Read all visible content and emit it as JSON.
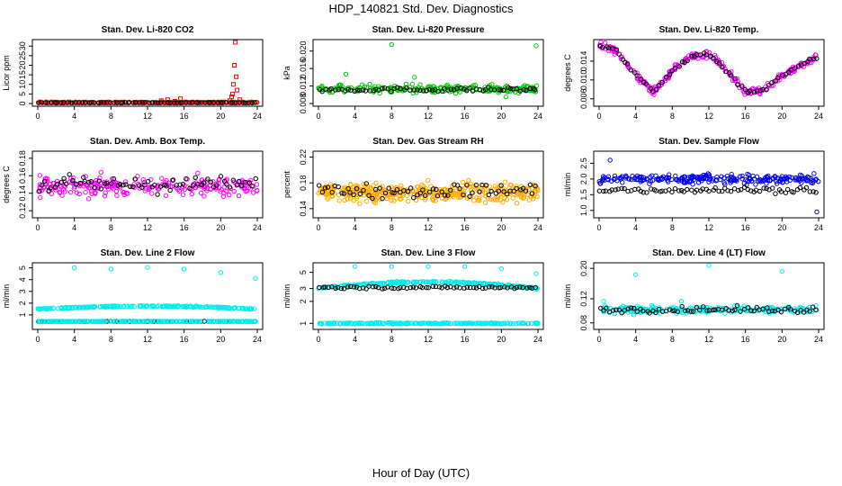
{
  "page": {
    "title": "HDP_140821  Std. Dev. Diagnostics",
    "footer": "Hour of Day (UTC)"
  },
  "chart_data": [
    {
      "type": "scatter",
      "title": "Stan. Dev. Li-820 CO2",
      "ylabel": "Licor ppm",
      "xlim": [
        0,
        24
      ],
      "ylim": [
        0,
        32
      ],
      "xticks": [
        "0",
        "4",
        "8",
        "12",
        "16",
        "20",
        "24"
      ],
      "yticks": [
        "0",
        "5",
        "10",
        "15",
        "20",
        "25",
        "30"
      ],
      "series": [
        {
          "color": "#ff0000",
          "pattern": "spiky",
          "base": 0.6,
          "spread": 0.4,
          "spikes": [
            [
              13.5,
              1.5
            ],
            [
              14.2,
              2
            ],
            [
              15.0,
              1.2
            ],
            [
              15.6,
              2.5
            ],
            [
              21.0,
              1.5
            ],
            [
              21.2,
              3.5
            ],
            [
              21.3,
              5
            ],
            [
              21.4,
              10
            ],
            [
              21.5,
              20
            ],
            [
              21.6,
              32
            ],
            [
              21.7,
              14
            ],
            [
              21.8,
              7
            ],
            [
              22.1,
              2
            ]
          ]
        },
        {
          "color": "#000000",
          "base": 0.4,
          "spread": 0.2
        }
      ]
    },
    {
      "type": "scatter",
      "title": "Stan. Dev. Li-820 Pressure",
      "ylabel": "kPa",
      "xlim": [
        0,
        24
      ],
      "ylim": [
        0.008,
        0.022
      ],
      "xticks": [
        "0",
        "4",
        "8",
        "12",
        "16",
        "20",
        "24"
      ],
      "yticks": [
        "0.008",
        "0.012",
        "0.016",
        "0.020"
      ],
      "series": [
        {
          "color": "#00cc00",
          "base": 0.0113,
          "spread": 0.0015,
          "outliers": [
            [
              8,
              0.0215
            ],
            [
              23.8,
              0.0212
            ],
            [
              3.0,
              0.0147
            ],
            [
              10.5,
              0.014
            ],
            [
              20.5,
              0.0095
            ]
          ]
        },
        {
          "color": "#000000",
          "base": 0.0112,
          "spread": 0.0008
        }
      ]
    },
    {
      "type": "scatter",
      "title": "Stan. Dev. Li-820 Temp.",
      "ylabel": "degrees C",
      "xlim": [
        0,
        24
      ],
      "ylim": [
        0.005,
        0.018
      ],
      "xticks": [
        "0",
        "4",
        "8",
        "12",
        "16",
        "20",
        "24"
      ],
      "yticks": [
        "0.006",
        "0.010",
        "0.014"
      ],
      "series": [
        {
          "color": "#ff00ff",
          "pattern": "wave",
          "wave": [
            [
              0,
              0.0175
            ],
            [
              2,
              0.016
            ],
            [
              4,
              0.011
            ],
            [
              6,
              0.0075
            ],
            [
              8,
              0.012
            ],
            [
              10,
              0.015
            ],
            [
              12,
              0.0155
            ],
            [
              14,
              0.012
            ],
            [
              16,
              0.0075
            ],
            [
              18,
              0.008
            ],
            [
              20,
              0.011
            ],
            [
              22,
              0.013
            ],
            [
              24,
              0.015
            ]
          ],
          "spread": 0.0012
        },
        {
          "color": "#000000",
          "pattern": "wave",
          "wave": [
            [
              0,
              0.0175
            ],
            [
              2,
              0.016
            ],
            [
              4,
              0.011
            ],
            [
              6,
              0.0075
            ],
            [
              8,
              0.012
            ],
            [
              10,
              0.015
            ],
            [
              12,
              0.0155
            ],
            [
              14,
              0.012
            ],
            [
              16,
              0.0075
            ],
            [
              18,
              0.008
            ],
            [
              20,
              0.011
            ],
            [
              22,
              0.013
            ],
            [
              24,
              0.015
            ]
          ],
          "spread": 0.0008
        }
      ]
    },
    {
      "type": "scatter",
      "title": "Stan. Dev. Amb. Box Temp.",
      "ylabel": "degrees C",
      "xlim": [
        0,
        24
      ],
      "ylim": [
        0.115,
        0.185
      ],
      "xticks": [
        "0",
        "4",
        "8",
        "12",
        "16",
        "20",
        "24"
      ],
      "yticks": [
        "0.12",
        "0.14",
        "0.16",
        "0.18"
      ],
      "series": [
        {
          "color": "#ff00ff",
          "base": 0.148,
          "spread": 0.018
        },
        {
          "color": "#000000",
          "base": 0.15,
          "spread": 0.015
        }
      ]
    },
    {
      "type": "scatter",
      "title": "Stan. Dev. Gas Stream RH",
      "ylabel": "percent",
      "xlim": [
        0,
        24
      ],
      "ylim": [
        0.13,
        0.225
      ],
      "xticks": [
        "0",
        "4",
        "8",
        "12",
        "16",
        "20",
        "24"
      ],
      "yticks": [
        "0.14",
        "0.18",
        "0.22"
      ],
      "series": [
        {
          "color": "#ffaa00",
          "base": 0.165,
          "spread": 0.022,
          "dense": true
        },
        {
          "color": "#000000",
          "base": 0.168,
          "spread": 0.018
        }
      ]
    },
    {
      "type": "scatter",
      "title": "Stan. Dev. Sample Flow",
      "ylabel": "ml/min",
      "xlim": [
        0,
        24
      ],
      "ylim": [
        0.85,
        2.8
      ],
      "xticks": [
        "0",
        "4",
        "8",
        "12",
        "16",
        "20",
        "24"
      ],
      "yticks": [
        "1.0",
        "1.5",
        "2.0",
        "2.5"
      ],
      "series": [
        {
          "color": "#0000ee",
          "base": 2.0,
          "spread": 0.25,
          "outliers": [
            [
              1.2,
              2.6
            ],
            [
              23.8,
              0.95
            ]
          ]
        },
        {
          "color": "#000000",
          "base": 1.65,
          "spread": 0.15
        }
      ]
    },
    {
      "type": "scatter",
      "title": "Stan. Dev. Line 2 Flow",
      "ylabel": "ml/min",
      "xlim": [
        0,
        24
      ],
      "ylim": [
        0,
        5.2
      ],
      "xticks": [
        "0",
        "4",
        "8",
        "12",
        "16",
        "20",
        "24"
      ],
      "yticks": [
        "1",
        "2",
        "3",
        "4",
        "5"
      ],
      "series": [
        {
          "color": "#00eeee",
          "pattern": "dome",
          "base": 1.5,
          "peak": 1.75,
          "spread": 0.08,
          "outliers": [
            [
              4,
              5
            ],
            [
              8,
              4.9
            ],
            [
              12,
              5.05
            ],
            [
              16,
              4.9
            ],
            [
              20,
              4.6
            ],
            [
              23.8,
              4.1
            ]
          ]
        },
        {
          "color": "#000000",
          "base": 0.45,
          "spread": 0.02
        },
        {
          "color": "#00eeee",
          "base": 0.45,
          "spread": 0.02
        }
      ]
    },
    {
      "type": "scatter",
      "title": "Stan. Dev. Line 3 Flow",
      "ylabel": "ml/min",
      "xlim": [
        0,
        24
      ],
      "ylim": [
        0.9,
        6.2
      ],
      "log": true,
      "xticks": [
        "0",
        "4",
        "8",
        "12",
        "16",
        "20",
        "24"
      ],
      "yticks": [
        "1",
        "2",
        "3",
        "5"
      ],
      "series": [
        {
          "color": "#00eeee",
          "pattern": "dome",
          "base": 3.0,
          "peak": 3.7,
          "spread": 0.15,
          "outliers": [
            [
              4,
              6
            ],
            [
              8,
              6
            ],
            [
              12,
              6
            ],
            [
              16,
              6
            ],
            [
              20,
              5.6
            ],
            [
              23.8,
              4.8
            ]
          ]
        },
        {
          "color": "#000000",
          "base": 3.1,
          "spread": 0.2
        },
        {
          "color": "#00eeee",
          "base": 1.0,
          "spread": 0.03
        }
      ]
    },
    {
      "type": "scatter",
      "title": "Stan. Dev. Line 4 (LT) Flow",
      "ylabel": "ml/min",
      "xlim": [
        0,
        24
      ],
      "ylim": [
        0.075,
        0.21
      ],
      "log": true,
      "xticks": [
        "0",
        "4",
        "8",
        "12",
        "16",
        "20",
        "24"
      ],
      "yticks": [
        "0.08",
        "0.12",
        "0.20"
      ],
      "series": [
        {
          "color": "#00eeee",
          "base": 0.1,
          "spread": 0.01,
          "outliers": [
            [
              4,
              0.18
            ],
            [
              12,
              0.21
            ],
            [
              20,
              0.19
            ],
            [
              0.5,
              0.115
            ],
            [
              9,
              0.115
            ]
          ]
        },
        {
          "color": "#000000",
          "base": 0.1,
          "spread": 0.008
        }
      ]
    }
  ]
}
